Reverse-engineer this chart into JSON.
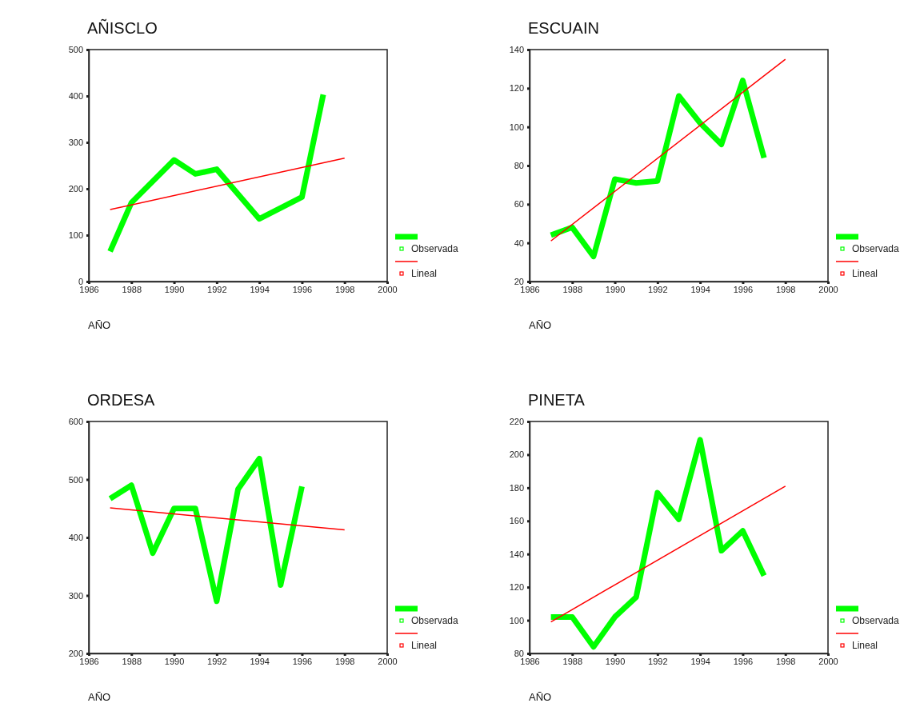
{
  "chart_data": [
    {
      "type": "line",
      "title": "AÑISCLO",
      "xlabel": "AÑO",
      "xlim": [
        1986,
        2000
      ],
      "xticks": [
        1986,
        1988,
        1990,
        1992,
        1994,
        1996,
        1998,
        2000
      ],
      "ylim": [
        0,
        500
      ],
      "yticks": [
        0,
        100,
        200,
        300,
        400,
        500
      ],
      "grid": false,
      "legend": "right",
      "series": [
        {
          "name": "Observada",
          "color": "#00ff00",
          "x": [
            1987,
            1988,
            1990,
            1991,
            1992,
            1994,
            1996,
            1997
          ],
          "values": [
            65,
            170,
            262,
            232,
            242,
            135,
            182,
            403
          ]
        },
        {
          "name": "Lineal",
          "color": "#ff0000",
          "x": [
            1987,
            1998
          ],
          "values": [
            155,
            266
          ]
        }
      ]
    },
    {
      "type": "line",
      "title": "ESCUAIN",
      "xlabel": "AÑO",
      "xlim": [
        1986,
        2000
      ],
      "xticks": [
        1986,
        1988,
        1990,
        1992,
        1994,
        1996,
        1998,
        2000
      ],
      "ylim": [
        20,
        140
      ],
      "yticks": [
        20,
        40,
        60,
        80,
        100,
        120,
        140
      ],
      "grid": false,
      "legend": "right",
      "series": [
        {
          "name": "Observada",
          "color": "#00ff00",
          "x": [
            1987,
            1988,
            1989,
            1990,
            1991,
            1992,
            1993,
            1994,
            1995,
            1996,
            1997
          ],
          "values": [
            44,
            48,
            33,
            73,
            71,
            72,
            116,
            102,
            91,
            124,
            84
          ]
        },
        {
          "name": "Lineal",
          "color": "#ff0000",
          "x": [
            1987,
            1998
          ],
          "values": [
            41,
            135
          ]
        }
      ]
    },
    {
      "type": "line",
      "title": "ORDESA",
      "xlabel": "AÑO",
      "xlim": [
        1986,
        2000
      ],
      "xticks": [
        1986,
        1988,
        1990,
        1992,
        1994,
        1996,
        1998,
        2000
      ],
      "ylim": [
        200,
        600
      ],
      "yticks": [
        200,
        300,
        400,
        500,
        600
      ],
      "grid": false,
      "legend": "right",
      "series": [
        {
          "name": "Observada",
          "color": "#00ff00",
          "x": [
            1987,
            1988,
            1989,
            1990,
            1991,
            1992,
            1993,
            1994,
            1995,
            1996
          ],
          "values": [
            467,
            490,
            373,
            450,
            450,
            290,
            483,
            536,
            318,
            488
          ]
        },
        {
          "name": "Lineal",
          "color": "#ff0000",
          "x": [
            1987,
            1998
          ],
          "values": [
            451,
            413
          ]
        }
      ]
    },
    {
      "type": "line",
      "title": "PINETA",
      "xlabel": "AÑO",
      "xlim": [
        1986,
        2000
      ],
      "xticks": [
        1986,
        1988,
        1990,
        1992,
        1994,
        1996,
        1998,
        2000
      ],
      "ylim": [
        80,
        220
      ],
      "yticks": [
        80,
        100,
        120,
        140,
        160,
        180,
        200,
        220
      ],
      "grid": false,
      "legend": "right",
      "series": [
        {
          "name": "Observada",
          "color": "#00ff00",
          "x": [
            1987,
            1988,
            1989,
            1990,
            1991,
            1992,
            1993,
            1994,
            1995,
            1996,
            1997
          ],
          "values": [
            102,
            102,
            84,
            102,
            114,
            177,
            161,
            209,
            142,
            154,
            127
          ]
        },
        {
          "name": "Lineal",
          "color": "#ff0000",
          "x": [
            1987,
            1998
          ],
          "values": [
            99,
            181
          ]
        }
      ]
    }
  ]
}
